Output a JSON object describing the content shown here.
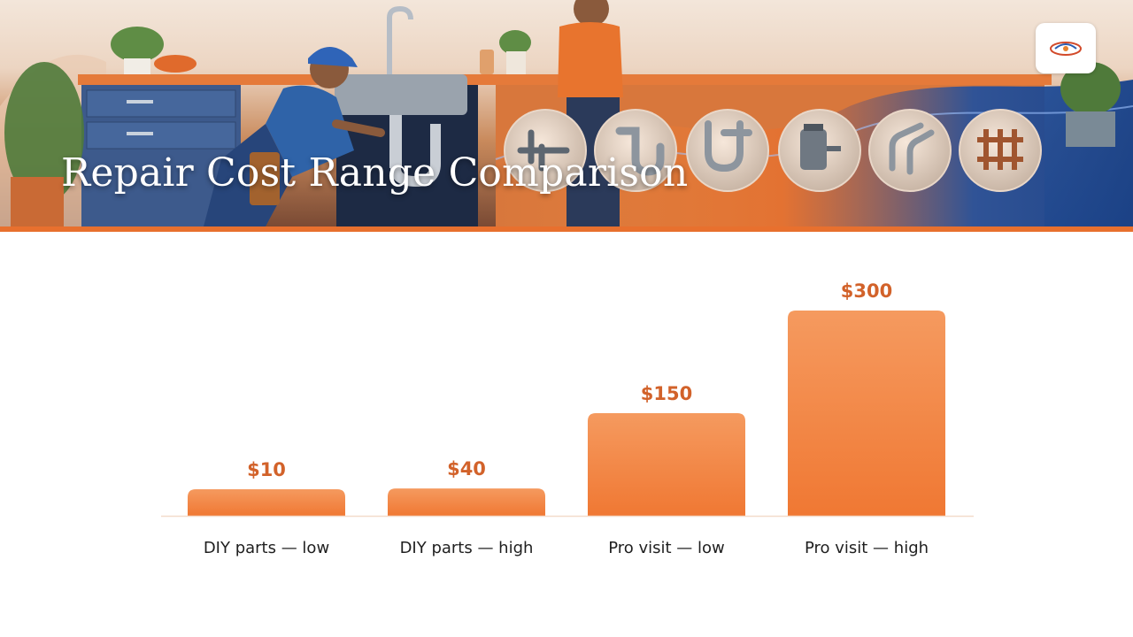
{
  "header": {
    "title": "Repair Cost Range Comparison"
  },
  "colors": {
    "bar_top": "#f59a5f",
    "bar_bottom": "#f07833",
    "value_label": "#d2622a",
    "accent_stripe": "#e8702e"
  },
  "icons": [
    "plumber-illustration",
    "pipe-valve-icon",
    "p-trap-icon",
    "double-trap-icon",
    "disposal-unit-icon",
    "pipe-bends-icon",
    "pipe-manifold-icon",
    "logo-icon"
  ],
  "chart_data": {
    "type": "bar",
    "categories": [
      "DIY parts — low",
      "DIY parts — high",
      "Pro visit — low",
      "Pro visit — high"
    ],
    "values": [
      10,
      40,
      150,
      300
    ],
    "value_labels": [
      "$10",
      "$40",
      "$150",
      "$300"
    ],
    "ylim": [
      0,
      300
    ],
    "grid": false,
    "legend": "none"
  }
}
